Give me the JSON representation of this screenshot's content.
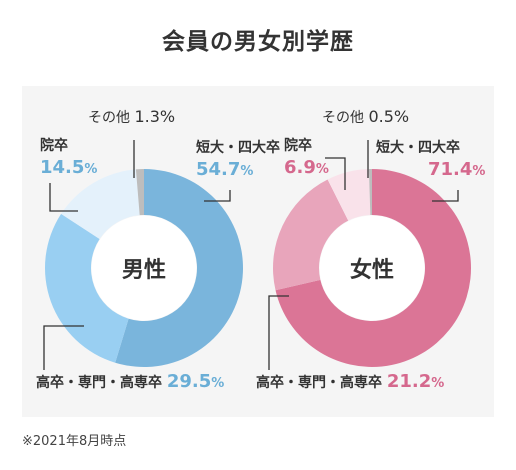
{
  "title": "会員の男女別学歴",
  "footnote": "※2021年8月時点",
  "chart_data": [
    {
      "type": "pie",
      "center_label": "男性",
      "accent_color": "#6aaed6",
      "slices": [
        {
          "name": "短大・四大卒",
          "value": 54.7,
          "display": "54.7",
          "color": "#7ab5dc"
        },
        {
          "name": "高卒・専門・高専卒",
          "value": 29.5,
          "display": "29.5",
          "color": "#99cff2"
        },
        {
          "name": "院卒",
          "value": 14.5,
          "display": "14.5",
          "color": "#e4f1fb"
        },
        {
          "name": "その他",
          "value": 1.3,
          "display": "1.3",
          "color": "#bdbdbd"
        }
      ]
    },
    {
      "type": "pie",
      "center_label": "女性",
      "accent_color": "#d5688d",
      "slices": [
        {
          "name": "短大・四大卒",
          "value": 71.4,
          "display": "71.4",
          "color": "#db7596"
        },
        {
          "name": "高卒・専門・高専卒",
          "value": 21.2,
          "display": "21.2",
          "color": "#e8a5bb"
        },
        {
          "name": "院卒",
          "value": 6.9,
          "display": "6.9",
          "color": "#f9e2ea"
        },
        {
          "name": "その他",
          "value": 0.5,
          "display": "0.5",
          "color": "#bdbdbd"
        }
      ]
    }
  ]
}
